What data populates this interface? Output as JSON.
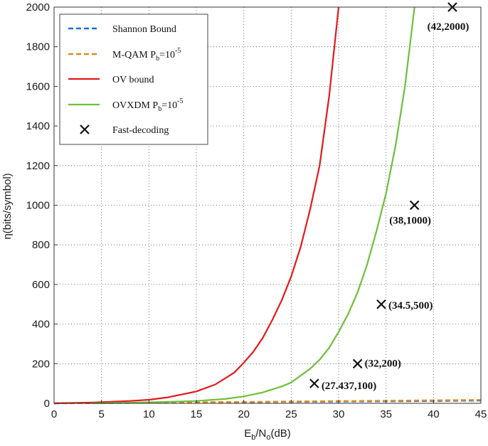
{
  "chart_data": {
    "type": "line",
    "title": "",
    "xlabel": {
      "main": "E",
      "sub1": "b",
      "mid": "/N",
      "sub2": "o",
      "tail": "(dB)"
    },
    "ylabel": "η(bits/symbol)",
    "xlim": [
      0,
      45
    ],
    "ylim": [
      0,
      2000
    ],
    "x_ticks": [
      0,
      5,
      10,
      15,
      20,
      25,
      30,
      35,
      40,
      45
    ],
    "y_ticks": [
      0,
      200,
      400,
      600,
      800,
      1000,
      1200,
      1400,
      1600,
      1800,
      2000
    ],
    "grid": true,
    "legend_position": "top-left",
    "series": [
      {
        "name": "Shannon Bound",
        "legend": {
          "main": "Shannon Bound"
        },
        "color": "#1f6fd1",
        "style": "dashed",
        "x": [
          0,
          5,
          10,
          15,
          20,
          25,
          30,
          35,
          40,
          45
        ],
        "y": [
          0.5,
          1.5,
          3,
          4.5,
          6,
          7.5,
          9,
          10.5,
          12,
          14
        ]
      },
      {
        "name": "M-QAM Pb=10^-5",
        "legend": {
          "main": "M-QAM P",
          "sub": "b",
          "mid": "=10",
          "sup": "-5"
        },
        "color": "#e08a1e",
        "style": "dashed",
        "x": [
          0,
          5,
          10,
          15,
          20,
          25,
          30,
          35,
          40,
          45
        ],
        "y": [
          0,
          1,
          3,
          5,
          7,
          9,
          11,
          13,
          15,
          17
        ]
      },
      {
        "name": "OV bound",
        "legend": {
          "main": "OV bound"
        },
        "color": "#e3191c",
        "style": "solid",
        "x": [
          0,
          4,
          8,
          10,
          12,
          15,
          17,
          19,
          20,
          21,
          22,
          23,
          24,
          25,
          26,
          27,
          28,
          29,
          30
        ],
        "y": [
          0,
          4,
          12,
          18,
          30,
          60,
          95,
          155,
          205,
          260,
          330,
          420,
          520,
          640,
          790,
          980,
          1200,
          1550,
          2000
        ]
      },
      {
        "name": "OVXDM Pb=10^-5",
        "legend": {
          "main": "OVXDM P",
          "sub": "b",
          "mid": "=10",
          "sup": "-5"
        },
        "color": "#6fbf3a",
        "style": "solid",
        "x": [
          4,
          10,
          15,
          18,
          20,
          22,
          24,
          25,
          26,
          27,
          28,
          29,
          30,
          31,
          32,
          33,
          34,
          35,
          36,
          37,
          38
        ],
        "y": [
          0,
          5,
          12,
          22,
          35,
          55,
          85,
          105,
          140,
          175,
          220,
          280,
          360,
          450,
          560,
          700,
          870,
          1060,
          1300,
          1600,
          2000
        ]
      }
    ],
    "fast_decoding": {
      "name": "Fast-decoding",
      "legend": {
        "main": "Fast-decoding"
      },
      "color": "#111111",
      "points": [
        {
          "x": 27.437,
          "y": 100,
          "label": "(27.437,100)"
        },
        {
          "x": 32,
          "y": 200,
          "label": "(32,200)"
        },
        {
          "x": 34.5,
          "y": 500,
          "label": "(34.5,500)"
        },
        {
          "x": 38,
          "y": 1000,
          "label": "(38,1000)"
        },
        {
          "x": 42,
          "y": 2000,
          "label": "(42,2000)"
        }
      ]
    }
  }
}
